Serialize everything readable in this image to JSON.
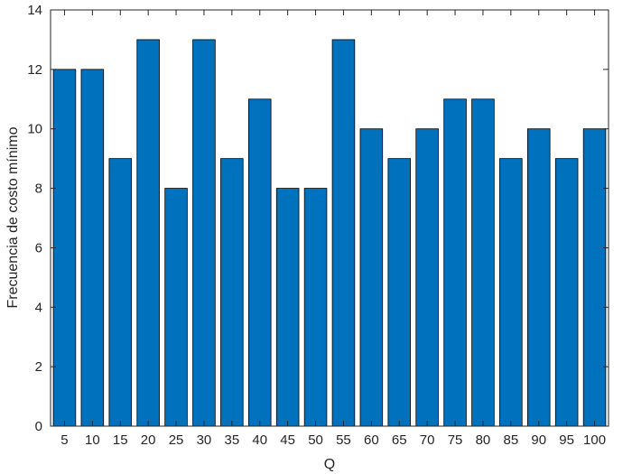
{
  "chart_data": {
    "type": "bar",
    "categories": [
      "5",
      "10",
      "15",
      "20",
      "25",
      "30",
      "35",
      "40",
      "45",
      "50",
      "55",
      "60",
      "65",
      "70",
      "75",
      "80",
      "85",
      "90",
      "95",
      "100"
    ],
    "values": [
      12,
      12,
      9,
      13,
      8,
      13,
      9,
      11,
      8,
      8,
      13,
      10,
      9,
      10,
      11,
      11,
      9,
      10,
      9,
      10
    ],
    "title": "",
    "xlabel": "Q",
    "ylabel": "Frecuencia de costo mínimo",
    "ylim": [
      0,
      14
    ],
    "yticks": [
      0,
      2,
      4,
      6,
      8,
      10,
      12,
      14
    ],
    "grid": false,
    "bar_color": "#0072BD",
    "edge_color": "#000000",
    "axis_color": "#262626"
  }
}
